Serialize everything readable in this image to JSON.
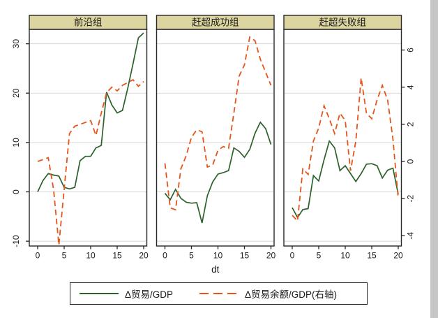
{
  "figure": {
    "xlabel": "dt",
    "x_ticks": [
      0,
      5,
      10,
      15,
      20
    ],
    "left_axis": {
      "ticks": [
        30,
        20,
        10,
        0,
        -10
      ],
      "range": [
        -10,
        30
      ]
    },
    "right_axis": {
      "ticks": [
        6,
        4,
        2,
        0,
        -2,
        -4
      ],
      "range": [
        -4,
        6
      ]
    },
    "legend": [
      {
        "label": "Δ贸易/GDP",
        "style": "solid",
        "color": "#2c612c"
      },
      {
        "label": "Δ贸易余额/GDP(右轴)",
        "style": "dashed",
        "color": "#e4551c"
      }
    ],
    "colors": {
      "green_line": "#2c612c",
      "orange_line": "#e4551c",
      "header_strip": "#ddd5a0",
      "grid": "#d9d9d9",
      "border": "#262626",
      "background": "#ffffff",
      "right_edge_band": "#c6c6c6"
    }
  },
  "chart_data": [
    {
      "type": "line",
      "title": "前沿组",
      "x": [
        0,
        1,
        2,
        3,
        4,
        5,
        6,
        7,
        8,
        9,
        10,
        11,
        12,
        13,
        14,
        15,
        16,
        17,
        18,
        19,
        20
      ],
      "xlabel": "dt",
      "left_ylim": [
        -10,
        30
      ],
      "right_ylim": [
        -4,
        6
      ],
      "grid": true,
      "series": [
        {
          "name": "Δ贸易/GDP",
          "axis": "left",
          "style": "solid",
          "color": "#2c612c",
          "values": [
            0,
            2.3,
            3.7,
            3.4,
            3.2,
            0.9,
            0.6,
            0.9,
            6.3,
            7.2,
            7.2,
            8.9,
            9.4,
            20.2,
            17.6,
            16.0,
            16.5,
            21.0,
            26.0,
            31.2,
            32.2
          ]
        },
        {
          "name": "Δ贸易余额/GDP(右轴)",
          "axis": "right",
          "style": "dashed",
          "color": "#e4551c",
          "values": [
            0.0,
            0.1,
            0.2,
            -1.5,
            -4.5,
            -1.5,
            1.5,
            1.9,
            2.0,
            2.1,
            2.2,
            1.4,
            2.6,
            3.7,
            4.0,
            3.8,
            4.1,
            4.25,
            4.4,
            4.05,
            4.3
          ]
        }
      ]
    },
    {
      "type": "line",
      "title": "赶超成功组",
      "x": [
        0,
        1,
        2,
        3,
        4,
        5,
        6,
        7,
        8,
        9,
        10,
        11,
        12,
        13,
        14,
        15,
        16,
        17,
        18,
        19,
        20
      ],
      "xlabel": "dt",
      "left_ylim": [
        -10,
        30
      ],
      "right_ylim": [
        -4,
        6
      ],
      "grid": true,
      "series": [
        {
          "name": "Δ贸易/GDP",
          "axis": "left",
          "style": "solid",
          "color": "#2c612c",
          "values": [
            -0.3,
            -1.6,
            0.5,
            -1.3,
            -2.1,
            -2.3,
            -2.2,
            -6.3,
            -0.8,
            2.0,
            3.6,
            3.9,
            4.3,
            8.9,
            8.2,
            7.0,
            8.6,
            11.9,
            14.1,
            12.8,
            9.6
          ]
        },
        {
          "name": "Δ贸易余额/GDP(右轴)",
          "axis": "right",
          "style": "dashed",
          "color": "#e4551c",
          "values": [
            -0.1,
            -2.5,
            -2.6,
            -0.4,
            0.3,
            1.3,
            1.7,
            1.6,
            -0.3,
            -0.2,
            0.6,
            0.8,
            0.7,
            2.6,
            4.6,
            5.2,
            6.7,
            6.5,
            5.5,
            4.8,
            4.1
          ]
        }
      ]
    },
    {
      "type": "line",
      "title": "赶超失败组",
      "x": [
        0,
        1,
        2,
        3,
        4,
        5,
        6,
        7,
        8,
        9,
        10,
        11,
        12,
        13,
        14,
        15,
        16,
        17,
        18,
        19,
        20
      ],
      "xlabel": "dt",
      "left_ylim": [
        -10,
        30
      ],
      "right_ylim": [
        -4,
        6
      ],
      "grid": true,
      "series": [
        {
          "name": "Δ贸易/GDP",
          "axis": "left",
          "style": "solid",
          "color": "#2c612c",
          "values": [
            -3.2,
            -5.2,
            -3.6,
            -3.4,
            3.3,
            2.2,
            6.5,
            10.3,
            8.9,
            4.3,
            5.3,
            3.7,
            2.1,
            3.7,
            5.6,
            5.7,
            5.3,
            2.8,
            4.4,
            4.8,
            -0.5
          ]
        },
        {
          "name": "Δ贸易余额/GDP(右轴)",
          "axis": "right",
          "style": "dashed",
          "color": "#e4551c",
          "values": [
            -2.9,
            -3.2,
            -0.4,
            -0.7,
            1.1,
            1.8,
            3.0,
            2.3,
            1.5,
            2.6,
            2.2,
            -0.5,
            1.1,
            4.5,
            2.6,
            2.3,
            3.3,
            4.1,
            3.3,
            1.2,
            -2.0
          ]
        }
      ]
    }
  ]
}
